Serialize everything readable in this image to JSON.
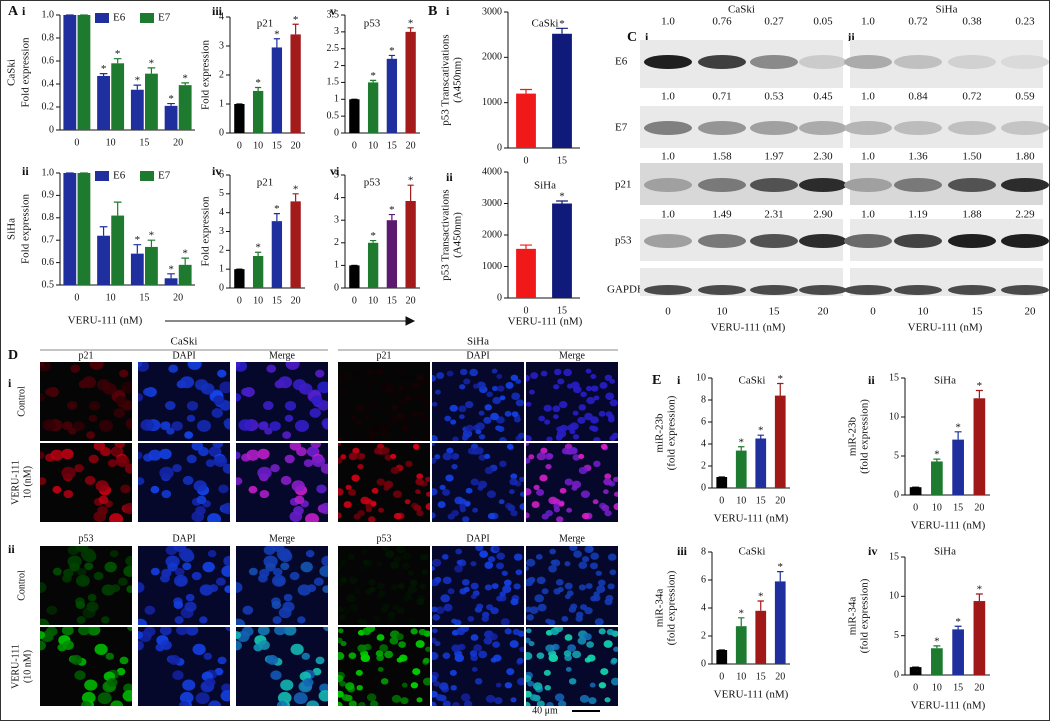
{
  "panel_labels": [
    "A",
    "B",
    "C",
    "D",
    "E"
  ],
  "chart_data": [
    {
      "type": "bar",
      "label": "i",
      "row_label": "CaSki",
      "ylabel": [
        "Fold expression"
      ],
      "categories": [
        0,
        10,
        15,
        20
      ],
      "series": [
        {
          "name": "E6",
          "color": "#1f2f9e",
          "values": [
            1,
            0.47,
            0.35,
            0.21
          ],
          "errors": [
            0,
            0.02,
            0.04,
            0.02
          ],
          "significance": [
            null,
            "*",
            "*",
            "*"
          ]
        },
        {
          "name": "E7",
          "color": "#1e7a2e",
          "values": [
            1,
            0.58,
            0.49,
            0.39
          ],
          "errors": [
            0,
            0.04,
            0.05,
            0.02
          ],
          "significance": [
            null,
            "*",
            "*",
            "*"
          ]
        }
      ],
      "ylim": [
        0,
        1
      ],
      "yticks": [
        0,
        0.2,
        0.4,
        0.6,
        0.8,
        {
          "value": 1,
          "label": "1.0"
        }
      ]
    },
    {
      "type": "bar",
      "label": "iii",
      "title": "p21",
      "ylabel": [
        "Fold expression"
      ],
      "categories": [
        0,
        10,
        15,
        20
      ],
      "series": [
        {
          "colors": [
            "#000000",
            "#1e7a2e",
            "#1f2f9e",
            "#a31b1b"
          ],
          "values": [
            1,
            1.45,
            2.95,
            3.4
          ],
          "errors": [
            0,
            0.12,
            0.3,
            0.35
          ],
          "significance": [
            null,
            "*",
            "*",
            "*"
          ]
        }
      ],
      "ylim": [
        0,
        4
      ],
      "yticks": [
        0,
        1,
        2,
        3,
        4
      ]
    },
    {
      "type": "bar",
      "label": "v",
      "title": "p53",
      "categories": [
        0,
        10,
        15,
        20
      ],
      "series": [
        {
          "colors": [
            "#000000",
            "#1e7a2e",
            "#1f2f9e",
            "#a31b1b"
          ],
          "values": [
            1,
            1.5,
            2.2,
            3.0
          ],
          "errors": [
            0,
            0.06,
            0.1,
            0.12
          ],
          "significance": [
            null,
            "*",
            "*",
            "*"
          ]
        }
      ],
      "ylim": [
        0,
        3.5
      ],
      "yticks": [
        0,
        0.5,
        1,
        1.5,
        2,
        2.5,
        3,
        3.5
      ]
    },
    {
      "type": "bar",
      "label": "ii",
      "row_label": "SiHa",
      "ylabel": [
        "Fold expression"
      ],
      "categories": [
        0,
        10,
        15,
        20
      ],
      "xlabel": "VERU-111 (nM)",
      "series": [
        {
          "name": "E6",
          "color": "#1f2f9e",
          "values": [
            1,
            0.72,
            0.64,
            0.53
          ],
          "errors": [
            0,
            0.04,
            0.04,
            0.02
          ],
          "significance": [
            null,
            null,
            "*",
            "*"
          ]
        },
        {
          "name": "E7",
          "color": "#1e7a2e",
          "values": [
            1,
            0.81,
            0.67,
            0.59
          ],
          "errors": [
            0,
            0.06,
            0.03,
            0.03
          ],
          "significance": [
            null,
            null,
            "*",
            "*"
          ]
        }
      ],
      "ylim": [
        0.5,
        1
      ],
      "yticks": [
        0.5,
        0.6,
        0.7,
        0.8,
        0.9,
        {
          "value": 1,
          "label": "1.0"
        }
      ]
    },
    {
      "type": "bar",
      "label": "iv",
      "title": "p21",
      "ylabel": [
        "Fold expression"
      ],
      "categories": [
        0,
        10,
        15,
        20
      ],
      "series": [
        {
          "colors": [
            "#000000",
            "#1e7a2e",
            "#1f2f9e",
            "#a31b1b"
          ],
          "values": [
            1,
            1.7,
            3.55,
            4.6
          ],
          "errors": [
            0,
            0.2,
            0.4,
            0.4
          ],
          "significance": [
            null,
            "*",
            "*",
            "*"
          ]
        }
      ],
      "ylim": [
        0,
        6
      ],
      "yticks": [
        0,
        1,
        2,
        3,
        4,
        5,
        6
      ]
    },
    {
      "type": "bar",
      "label": "vi",
      "title": "p53",
      "categories": [
        0,
        10,
        15,
        20
      ],
      "series": [
        {
          "colors": [
            "#000000",
            "#1e7a2e",
            "#5b1a6e",
            "#a31b1b"
          ],
          "values": [
            1,
            2.0,
            3.0,
            3.85
          ],
          "errors": [
            0,
            0.1,
            0.25,
            0.7
          ],
          "significance": [
            null,
            "*",
            "*",
            "*"
          ]
        }
      ],
      "ylim": [
        0,
        5
      ],
      "yticks": [
        0,
        1,
        2,
        3,
        4,
        5
      ]
    },
    {
      "type": "bar",
      "label": "i",
      "title": "CaSki",
      "ylabel": [
        "p53 Transcativations",
        "(A450nm)"
      ],
      "categories": [
        0,
        15
      ],
      "series": [
        {
          "colors": [
            "#f01818",
            "#101a7a"
          ],
          "values": [
            1200,
            2520
          ],
          "errors": [
            90,
            120
          ],
          "significance": [
            null,
            "*"
          ]
        }
      ],
      "ylim": [
        0,
        3000
      ],
      "yticks": [
        0,
        1000,
        2000,
        3000
      ]
    },
    {
      "type": "bar",
      "label": "ii",
      "title": "SiHa",
      "ylabel": [
        "p53 Transactivations",
        "(A450nm)"
      ],
      "categories": [
        0,
        15
      ],
      "xlabel": "VERU-111 (nM)",
      "series": [
        {
          "colors": [
            "#f01818",
            "#101a7a"
          ],
          "values": [
            1560,
            3000
          ],
          "errors": [
            120,
            80
          ],
          "significance": [
            null,
            "*"
          ]
        }
      ],
      "ylim": [
        0,
        4000
      ],
      "yticks": [
        0,
        1000,
        2000,
        3000,
        4000
      ]
    },
    {
      "type": "bar",
      "label": "i",
      "title": "CaSki",
      "ylabel": [
        "miR-23b",
        "(fold  expression)"
      ],
      "categories": [
        0,
        10,
        15,
        20
      ],
      "xlabel": "VERU-111 (nM)",
      "series": [
        {
          "colors": [
            "#000000",
            "#1e7a2e",
            "#1f2f9e",
            "#a01818"
          ],
          "values": [
            1,
            3.4,
            4.5,
            8.4
          ],
          "errors": [
            0,
            0.35,
            0.3,
            1.1
          ],
          "significance": [
            null,
            "*",
            "*",
            "*"
          ]
        }
      ],
      "ylim": [
        0,
        10
      ],
      "yticks": [
        0,
        2,
        4,
        6,
        8,
        10
      ]
    },
    {
      "type": "bar",
      "label": "ii",
      "title": "SiHa",
      "ylabel": [
        "miR-23b",
        "(fold  expression)"
      ],
      "categories": [
        0,
        10,
        15,
        20
      ],
      "xlabel": "VERU-111 (nM)",
      "series": [
        {
          "colors": [
            "#000000",
            "#1e7a2e",
            "#1f2f9e",
            "#a01818"
          ],
          "values": [
            1,
            4.3,
            7.1,
            12.4
          ],
          "errors": [
            0,
            0.3,
            1,
            1
          ],
          "significance": [
            null,
            "*",
            "*",
            "*"
          ]
        }
      ],
      "ylim": [
        0,
        15
      ],
      "yticks": [
        0,
        5,
        10,
        15
      ]
    },
    {
      "type": "bar",
      "label": "iii",
      "title": "CaSki",
      "ylabel": [
        "miR-34a",
        "(fold  expression)"
      ],
      "categories": [
        0,
        10,
        15,
        20
      ],
      "xlabel": "VERU-111 (nM)",
      "series": [
        {
          "colors": [
            "#000000",
            "#1e7a2e",
            "#a01818",
            "#1f2f9e"
          ],
          "values": [
            1,
            2.7,
            3.8,
            5.9
          ],
          "errors": [
            0,
            0.6,
            0.7,
            0.7
          ],
          "significance": [
            null,
            "*",
            "*",
            "*"
          ]
        }
      ],
      "ylim": [
        0,
        8
      ],
      "yticks": [
        0,
        2,
        4,
        6,
        8
      ]
    },
    {
      "type": "bar",
      "label": "iv",
      "title": "SiHa",
      "ylabel": [
        "miR-34a",
        "(fold  expression)"
      ],
      "categories": [
        0,
        10,
        15,
        20
      ],
      "xlabel": "VERU-111 (nM)",
      "series": [
        {
          "colors": [
            "#000000",
            "#1e7a2e",
            "#1f2f9e",
            "#a01818"
          ],
          "values": [
            1,
            3.4,
            5.8,
            9.4
          ],
          "errors": [
            0,
            0.3,
            0.4,
            0.9
          ],
          "significance": [
            null,
            "*",
            "*",
            "*"
          ]
        }
      ],
      "ylim": [
        0,
        15
      ],
      "yticks": [
        0,
        5,
        10,
        15
      ]
    }
  ],
  "blots": {
    "proteins": [
      "E6",
      "E7",
      "p21",
      "p53",
      "GAPDH"
    ],
    "lanes": [
      0,
      10,
      15,
      20
    ],
    "xlabel": "VERU-111 (nM)",
    "panels": [
      {
        "label": "i",
        "cell_line": "CaSki",
        "quant": [
          [
            "1.0",
            "0.76",
            "0.27",
            "0.05"
          ],
          [
            "1.0",
            "0.71",
            "0.53",
            "0.45"
          ],
          [
            "1.0",
            "1.58",
            "1.97",
            "2.30"
          ],
          [
            "1.0",
            "1.49",
            "2.31",
            "2.90"
          ]
        ]
      },
      {
        "label": "ii",
        "cell_line": "SiHa",
        "quant": [
          [
            "1.0",
            "0.72",
            "0.38",
            "0.23"
          ],
          [
            "1.0",
            "0.84",
            "0.72",
            "0.59"
          ],
          [
            "1.0",
            "1.36",
            "1.50",
            "1.80"
          ],
          [
            "1.0",
            "1.19",
            "1.88",
            "2.29"
          ]
        ]
      }
    ]
  },
  "microscopy": {
    "cell_lines": [
      "CaSki",
      "SiHa"
    ],
    "channels": [
      "DAPI",
      "Merge"
    ],
    "rows": [
      {
        "label": "i",
        "marker": "p21",
        "conditions": [
          [
            "Control"
          ],
          [
            "VERU-111",
            "10 (nM)"
          ]
        ]
      },
      {
        "label": "ii",
        "marker": "p53",
        "conditions": [
          [
            "Control"
          ],
          [
            "VERU-111",
            "(10 nM)"
          ]
        ]
      }
    ],
    "scale_bar": "40 μm"
  }
}
